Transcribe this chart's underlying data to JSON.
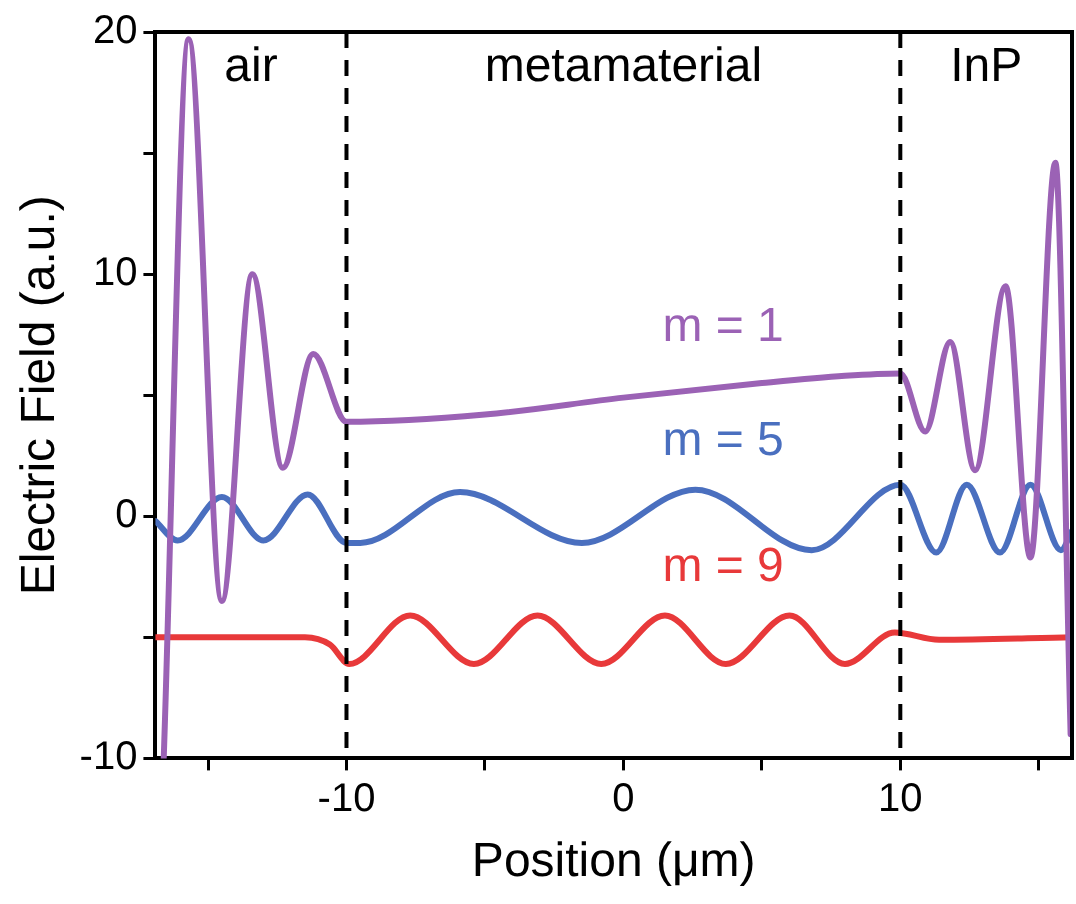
{
  "chart_data": {
    "type": "line",
    "xlabel": "Position (μm)",
    "ylabel": "Electric Field (a.u.)",
    "xlim": [
      -16.9,
      16.2
    ],
    "ylim": [
      -10,
      20
    ],
    "xticks": [
      {
        "value": -15,
        "label": null
      },
      -10,
      {
        "value": -5,
        "label": null
      },
      0,
      {
        "value": 5,
        "label": null
      },
      10,
      {
        "value": 15,
        "label": null
      }
    ],
    "yticks": [
      -10,
      {
        "value": -5,
        "label": null
      },
      0,
      {
        "value": 5,
        "label": null
      },
      10,
      {
        "value": 15,
        "label": null
      },
      20
    ],
    "grid": false,
    "legend": false,
    "marker": "none",
    "line_style": "solid",
    "ref_lines": [
      {
        "axis": "x",
        "value": -10,
        "color": "#000000",
        "line_style": "dashed"
      },
      {
        "axis": "x",
        "value": 10,
        "color": "#000000",
        "line_style": "dashed"
      }
    ],
    "annotations": [
      "air",
      "metamaterial",
      "InP"
    ],
    "series": [
      {
        "name": "m = 1",
        "color": "#9b62b5",
        "x": [
          -16.6,
          -15.7,
          -14.5,
          -13.4,
          -12.3,
          -11.2,
          -10,
          -5,
          0,
          5,
          8,
          10,
          10.9,
          11.8,
          12.7,
          13.8,
          14.7,
          15.6,
          16.15
        ],
        "values": [
          -10,
          19.7,
          -3.5,
          10,
          2,
          6.7,
          3.9,
          4.2,
          4.9,
          5.5,
          5.8,
          5.9,
          3.5,
          7.2,
          1.9,
          9.5,
          -1.7,
          14.6,
          -9
        ]
      },
      {
        "name": "m = 5",
        "color": "#4a6fbf",
        "x": [
          -16.9,
          -16.1,
          -14.5,
          -13,
          -11.4,
          -10,
          -9.5,
          -5.9,
          -1.5,
          2.6,
          6.8,
          10,
          11.3,
          12.4,
          13.6,
          14.7,
          15.8,
          16.2
        ],
        "values": [
          -0.2,
          -1,
          0.8,
          -1,
          0.9,
          -1.1,
          -1.1,
          1,
          -1.1,
          1.1,
          -1.4,
          1.3,
          -1.5,
          1.3,
          -1.5,
          1.3,
          -1.4,
          -0.6
        ]
      },
      {
        "name": "m = 9",
        "color": "#e8393a",
        "x": [
          -16.9,
          -11.5,
          -10.6,
          -9.9,
          -7.7,
          -5.4,
          -3.1,
          -0.8,
          1.5,
          3.7,
          6,
          8,
          9.8,
          11.4,
          16.2
        ],
        "values": [
          -5,
          -5,
          -5.3,
          -6.1,
          -4.1,
          -6.1,
          -4.1,
          -6.1,
          -4.1,
          -6.1,
          -4.1,
          -6.1,
          -4.8,
          -5.1,
          -5
        ]
      }
    ]
  }
}
